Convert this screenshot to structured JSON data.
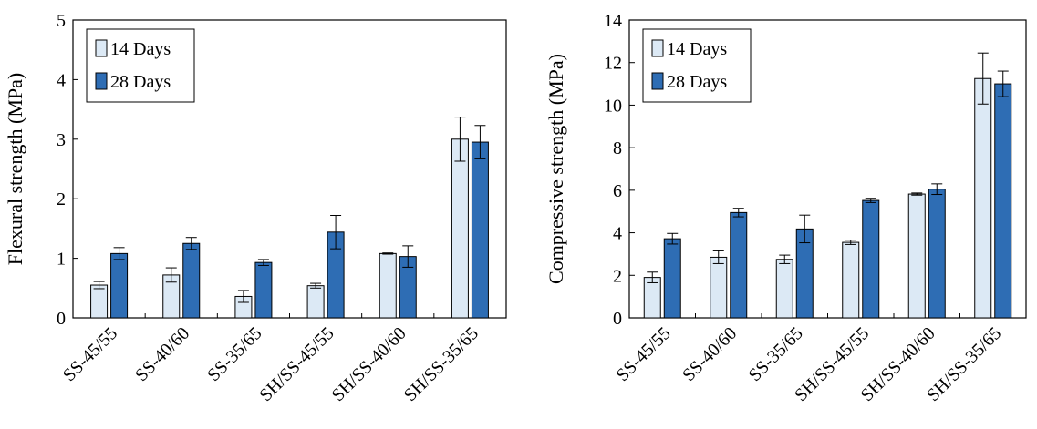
{
  "chart_data": [
    {
      "type": "bar",
      "categories": [
        "SS-45/55",
        "SS-40/60",
        "SS-35/65",
        "SH/SS-45/55",
        "SH/SS-40/60",
        "SH/SS-35/65"
      ],
      "series": [
        {
          "name": "14 Days",
          "color": "#dce9f5",
          "values": [
            0.55,
            0.72,
            0.36,
            0.54,
            1.08,
            3.0
          ],
          "errors": [
            0.06,
            0.12,
            0.1,
            0.04,
            0.01,
            0.37
          ]
        },
        {
          "name": "28 Days",
          "color": "#2e6db4",
          "values": [
            1.08,
            1.25,
            0.93,
            1.44,
            1.03,
            2.95
          ],
          "errors": [
            0.1,
            0.1,
            0.05,
            0.28,
            0.18,
            0.28
          ]
        }
      ],
      "title": "",
      "xlabel": "",
      "ylabel": "Flexural strength (MPa)",
      "ylim": [
        0,
        5
      ],
      "yticks": [
        "0",
        "1",
        "2",
        "3",
        "4",
        "5"
      ],
      "legend": "top-left",
      "grid": false
    },
    {
      "type": "bar",
      "categories": [
        "SS-45/55",
        "SS-40/60",
        "SS-35/65",
        "SH/SS-45/55",
        "SH/SS-40/60",
        "SH/SS-35/65"
      ],
      "series": [
        {
          "name": "14 Days",
          "color": "#dce9f5",
          "values": [
            1.9,
            2.85,
            2.75,
            3.55,
            5.82,
            11.25
          ],
          "errors": [
            0.25,
            0.3,
            0.2,
            0.1,
            0.05,
            1.2
          ]
        },
        {
          "name": "28 Days",
          "color": "#2e6db4",
          "values": [
            3.72,
            4.95,
            4.18,
            5.52,
            6.05,
            11.0
          ],
          "errors": [
            0.25,
            0.2,
            0.65,
            0.1,
            0.25,
            0.6
          ]
        }
      ],
      "title": "",
      "xlabel": "",
      "ylabel": "Compressive strength (MPa)",
      "ylim": [
        0,
        14
      ],
      "yticks": [
        "0",
        "2",
        "4",
        "6",
        "8",
        "10",
        "12",
        "14"
      ],
      "legend": "top-left",
      "grid": false
    }
  ]
}
